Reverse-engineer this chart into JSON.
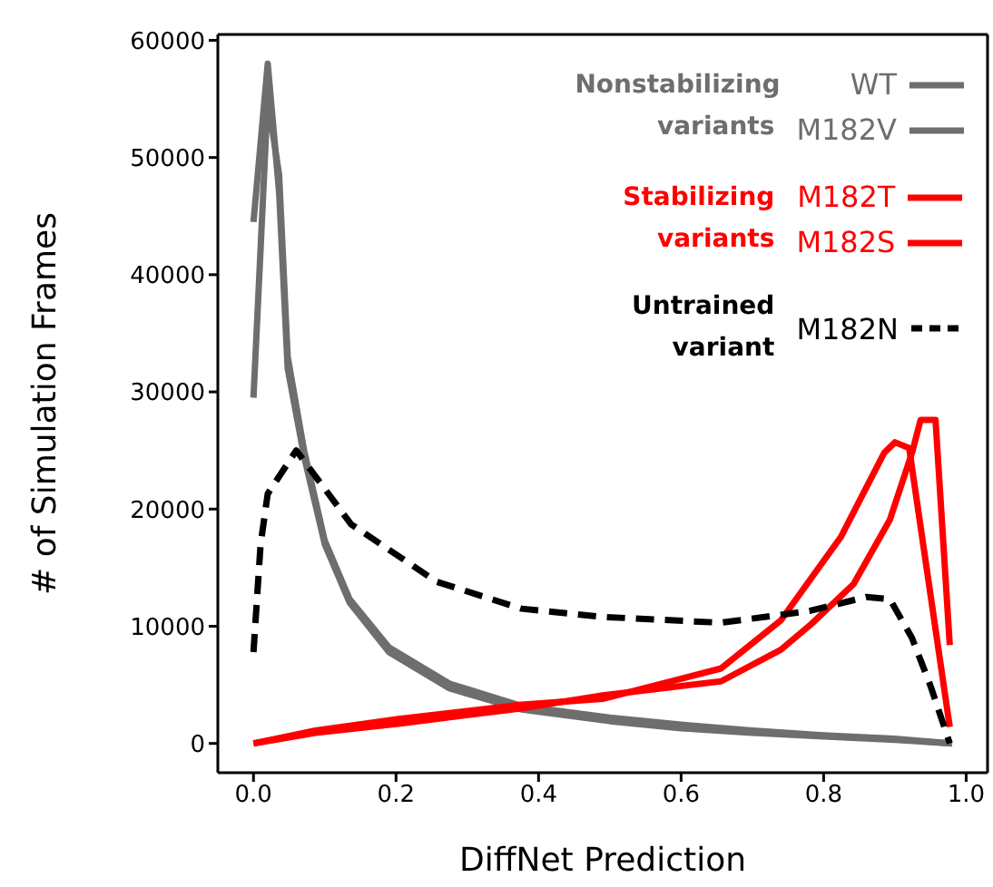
{
  "chart_data": {
    "type": "line",
    "xlabel": "DiffNet Prediction",
    "ylabel": "# of Simulation Frames",
    "xlim": [
      -0.05,
      1.03
    ],
    "ylim": [
      -2500,
      60500
    ],
    "xticks": [
      {
        "value": 0,
        "label": "0.0"
      },
      {
        "value": 0.2,
        "label": "0.2"
      },
      {
        "value": 0.4,
        "label": "0.4"
      },
      {
        "value": 0.6,
        "label": "0.6"
      },
      {
        "value": 0.8,
        "label": "0.8"
      },
      {
        "value": 1,
        "label": "1.0"
      }
    ],
    "yticks": [
      0,
      10000,
      20000,
      30000,
      40000,
      50000,
      60000
    ],
    "legend": "top right",
    "marker": "none",
    "annotations": [
      "Nonstabilizing variants",
      "Stabilizing variants",
      "Untrained variant"
    ],
    "series": [
      {
        "name": "WT",
        "color": "#6e6e6e",
        "line_style": "solid",
        "x": [
          0,
          0.02,
          0.036,
          0.048,
          0.071,
          0.1,
          0.135,
          0.19,
          0.275,
          0.376,
          0.5,
          0.6,
          0.7,
          0.8,
          0.9,
          0.98
        ],
        "values": [
          44500,
          58000,
          47000,
          32000,
          24500,
          17000,
          12000,
          7800,
          4700,
          2900,
          1900,
          1300,
          900,
          600,
          300,
          0
        ]
      },
      {
        "name": "M182V",
        "color": "#6e6e6e",
        "line_style": "solid",
        "x": [
          0,
          0.02,
          0.036,
          0.048,
          0.071,
          0.1,
          0.135,
          0.19,
          0.275,
          0.376,
          0.5,
          0.6,
          0.7,
          0.8,
          0.9,
          0.98
        ],
        "values": [
          29500,
          55000,
          48500,
          33000,
          25000,
          17300,
          12300,
          8200,
          5100,
          3200,
          2200,
          1600,
          1100,
          700,
          400,
          0
        ]
      },
      {
        "name": "M182T",
        "color": "#ff0000",
        "line_style": "solid",
        "x": [
          0,
          0.087,
          0.206,
          0.376,
          0.49,
          0.656,
          0.74,
          0.824,
          0.885,
          0.9,
          0.92,
          0.977
        ],
        "values": [
          0,
          1100,
          2100,
          3300,
          3800,
          6400,
          10500,
          17600,
          24800,
          25700,
          25200,
          1400
        ]
      },
      {
        "name": "M182S",
        "color": "#ff0000",
        "line_style": "solid",
        "x": [
          0,
          0.087,
          0.206,
          0.376,
          0.49,
          0.656,
          0.74,
          0.783,
          0.842,
          0.893,
          0.924,
          0.936,
          0.957,
          0.977
        ],
        "values": [
          0,
          900,
          1700,
          3000,
          4100,
          5300,
          8000,
          10200,
          13600,
          19100,
          24800,
          27600,
          27600,
          8400
        ]
      },
      {
        "name": "M182N",
        "color": "#000000",
        "line_style": "dashed",
        "x": [
          0,
          0.01,
          0.02,
          0.06,
          0.137,
          0.257,
          0.376,
          0.49,
          0.656,
          0.78,
          0.86,
          0.893,
          0.924,
          0.95,
          0.977
        ],
        "values": [
          7800,
          17000,
          21300,
          25000,
          18700,
          13800,
          11500,
          10800,
          10300,
          11300,
          12500,
          12300,
          9000,
          4900,
          0
        ]
      }
    ]
  }
}
